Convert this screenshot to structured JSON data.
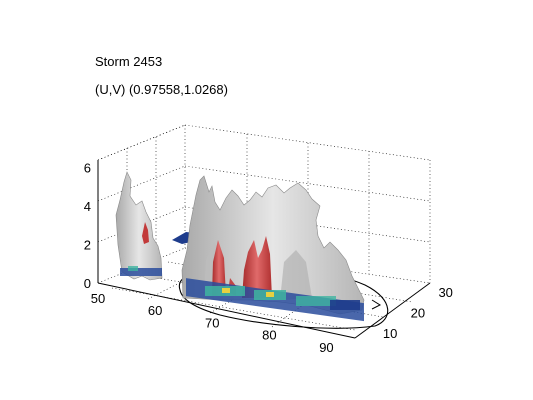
{
  "chart_data": {
    "type": "3d-isosurface",
    "title": "Storm 2453",
    "subtitle": "(U,V) (0.97558,1.0268)",
    "xlabel": "",
    "ylabel": "",
    "zlabel": "",
    "x_ticks": [
      "50",
      "60",
      "70",
      "80",
      "90"
    ],
    "y_ticks": [
      "10",
      "20",
      "30"
    ],
    "z_ticks": [
      "0",
      "2",
      "4",
      "6"
    ],
    "xlim": [
      50,
      95
    ],
    "ylim": [
      5,
      32
    ],
    "zlim": [
      0,
      6.4
    ],
    "grid": true,
    "colors": {
      "outer_surface": "#c8c8c8",
      "inner_surface": "#d23c3c",
      "base_low": "#1e3c8c",
      "base_mid": "#3fb4a0",
      "base_high": "#e8d040"
    }
  }
}
